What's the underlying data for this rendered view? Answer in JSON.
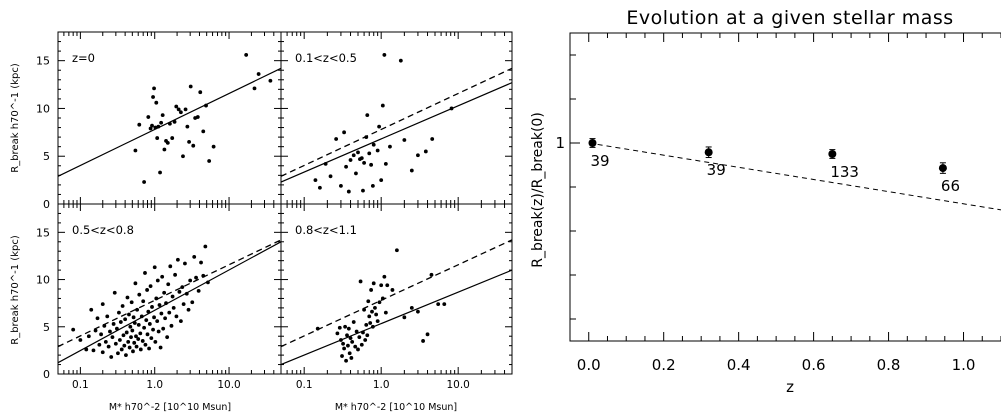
{
  "chart_data": [
    {
      "type": "scatter",
      "layout": "2x2 panel grid",
      "x_scale": "log",
      "xlabel": "M* h70^-2 [10^10 Msun]",
      "ylabel": "R_break h70^-1 (kpc)",
      "xlim": [
        0.05,
        50
      ],
      "ylim": [
        0,
        18
      ],
      "xtick_labels": [
        "0.1",
        "1.0",
        "10.0"
      ],
      "ytick_labels": [
        "0",
        "5",
        "10",
        "15"
      ],
      "reference_line": {
        "style": "dashed",
        "description": "z=0 fit",
        "x": [
          0.05,
          50
        ],
        "y": [
          2.9,
          14.2
        ]
      },
      "panels": [
        {
          "label": "z=0",
          "fit_line": {
            "style": "solid",
            "x": [
              0.05,
              50
            ],
            "y": [
              2.9,
              14.2
            ]
          },
          "points": [
            [
              0.62,
              8.3
            ],
            [
              0.55,
              5.6
            ],
            [
              0.72,
              2.3
            ],
            [
              0.82,
              9.1
            ],
            [
              0.88,
              7.9
            ],
            [
              0.92,
              8.2
            ],
            [
              0.95,
              11.2
            ],
            [
              0.98,
              12.1
            ],
            [
              1.02,
              8.0
            ],
            [
              1.05,
              10.6
            ],
            [
              1.08,
              6.9
            ],
            [
              1.12,
              8.1
            ],
            [
              1.18,
              3.3
            ],
            [
              1.22,
              8.5
            ],
            [
              1.28,
              9.3
            ],
            [
              1.35,
              5.7
            ],
            [
              1.42,
              6.6
            ],
            [
              1.5,
              6.4
            ],
            [
              1.6,
              8.4
            ],
            [
              1.72,
              6.9
            ],
            [
              1.85,
              8.6
            ],
            [
              1.95,
              10.2
            ],
            [
              2.1,
              9.9
            ],
            [
              2.25,
              9.6
            ],
            [
              2.4,
              5.0
            ],
            [
              2.6,
              9.9
            ],
            [
              2.75,
              8.1
            ],
            [
              2.9,
              6.5
            ],
            [
              3.05,
              12.3
            ],
            [
              3.3,
              6.1
            ],
            [
              3.5,
              9.0
            ],
            [
              3.8,
              9.1
            ],
            [
              4.1,
              11.7
            ],
            [
              4.5,
              7.6
            ],
            [
              4.9,
              10.3
            ],
            [
              5.4,
              4.5
            ],
            [
              6.2,
              6.0
            ],
            [
              17,
              15.6
            ],
            [
              22,
              12.1
            ],
            [
              25,
              13.6
            ],
            [
              36,
              12.9
            ]
          ]
        },
        {
          "label": "0.1<z<0.5",
          "fit_line": {
            "style": "solid",
            "x": [
              0.05,
              50
            ],
            "y": [
              2.3,
              12.7
            ]
          },
          "points": [
            [
              0.14,
              2.5
            ],
            [
              0.16,
              1.7
            ],
            [
              0.19,
              4.2
            ],
            [
              0.22,
              2.9
            ],
            [
              0.26,
              6.8
            ],
            [
              0.3,
              1.9
            ],
            [
              0.33,
              7.5
            ],
            [
              0.35,
              3.9
            ],
            [
              0.38,
              1.3
            ],
            [
              0.4,
              4.6
            ],
            [
              0.44,
              5.1
            ],
            [
              0.47,
              3.2
            ],
            [
              0.5,
              5.4
            ],
            [
              0.53,
              4.7
            ],
            [
              0.56,
              4.8
            ],
            [
              0.58,
              1.4
            ],
            [
              0.6,
              4.3
            ],
            [
              0.64,
              7.0
            ],
            [
              0.66,
              9.3
            ],
            [
              0.7,
              5.3
            ],
            [
              0.74,
              4.1
            ],
            [
              0.78,
              1.9
            ],
            [
              0.8,
              6.2
            ],
            [
              0.9,
              5.6
            ],
            [
              0.94,
              8.1
            ],
            [
              1.0,
              2.5
            ],
            [
              1.05,
              10.3
            ],
            [
              1.1,
              15.6
            ],
            [
              1.15,
              4.2
            ],
            [
              1.3,
              6.0
            ],
            [
              1.8,
              15.0
            ],
            [
              2.0,
              6.7
            ],
            [
              2.5,
              3.5
            ],
            [
              3.0,
              5.1
            ],
            [
              3.8,
              5.5
            ],
            [
              4.6,
              6.8
            ],
            [
              8.2,
              10.0
            ]
          ]
        },
        {
          "label": "0.5<z<0.8",
          "fit_line": {
            "style": "solid",
            "x": [
              0.05,
              50
            ],
            "y": [
              1.2,
              14.0
            ]
          },
          "points": [
            [
              0.08,
              4.7
            ],
            [
              0.1,
              3.6
            ],
            [
              0.12,
              2.6
            ],
            [
              0.13,
              4.0
            ],
            [
              0.14,
              6.8
            ],
            [
              0.15,
              2.5
            ],
            [
              0.16,
              4.6
            ],
            [
              0.17,
              5.9
            ],
            [
              0.18,
              3.1
            ],
            [
              0.19,
              4.2
            ],
            [
              0.2,
              7.4
            ],
            [
              0.2,
              2.3
            ],
            [
              0.21,
              5.1
            ],
            [
              0.22,
              3.4
            ],
            [
              0.23,
              6.1
            ],
            [
              0.24,
              2.9
            ],
            [
              0.25,
              4.5
            ],
            [
              0.26,
              1.8
            ],
            [
              0.27,
              3.9
            ],
            [
              0.28,
              5.3
            ],
            [
              0.29,
              8.6
            ],
            [
              0.3,
              3.2
            ],
            [
              0.31,
              4.8
            ],
            [
              0.32,
              2.2
            ],
            [
              0.33,
              6.5
            ],
            [
              0.34,
              3.6
            ],
            [
              0.35,
              5.5
            ],
            [
              0.36,
              2.6
            ],
            [
              0.37,
              7.2
            ],
            [
              0.38,
              4.1
            ],
            [
              0.39,
              3.0
            ],
            [
              0.4,
              5.8
            ],
            [
              0.41,
              2.0
            ],
            [
              0.42,
              4.4
            ],
            [
              0.43,
              8.1
            ],
            [
              0.44,
              3.4
            ],
            [
              0.45,
              6.3
            ],
            [
              0.46,
              2.8
            ],
            [
              0.47,
              5.0
            ],
            [
              0.48,
              3.9
            ],
            [
              0.49,
              7.6
            ],
            [
              0.5,
              4.6
            ],
            [
              0.51,
              2.4
            ],
            [
              0.52,
              6.0
            ],
            [
              0.53,
              3.3
            ],
            [
              0.54,
              5.4
            ],
            [
              0.55,
              9.6
            ],
            [
              0.56,
              4.0
            ],
            [
              0.57,
              2.9
            ],
            [
              0.58,
              6.8
            ],
            [
              0.6,
              3.7
            ],
            [
              0.61,
              5.2
            ],
            [
              0.62,
              8.4
            ],
            [
              0.64,
              4.3
            ],
            [
              0.65,
              2.6
            ],
            [
              0.67,
              6.1
            ],
            [
              0.69,
              3.5
            ],
            [
              0.7,
              7.7
            ],
            [
              0.72,
              4.9
            ],
            [
              0.74,
              10.7
            ],
            [
              0.75,
              3.1
            ],
            [
              0.77,
              5.7
            ],
            [
              0.79,
              8.9
            ],
            [
              0.8,
              4.2
            ],
            [
              0.82,
              6.6
            ],
            [
              0.84,
              2.7
            ],
            [
              0.86,
              5.3
            ],
            [
              0.88,
              9.3
            ],
            [
              0.9,
              3.8
            ],
            [
              0.92,
              7.1
            ],
            [
              0.95,
              4.7
            ],
            [
              0.98,
              6.0
            ],
            [
              1.0,
              11.3
            ],
            [
              1.02,
              3.4
            ],
            [
              1.05,
              8.0
            ],
            [
              1.08,
              5.6
            ],
            [
              1.1,
              9.9
            ],
            [
              1.13,
              4.5
            ],
            [
              1.16,
              7.3
            ],
            [
              1.2,
              2.8
            ],
            [
              1.23,
              6.4
            ],
            [
              1.26,
              10.3
            ],
            [
              1.3,
              4.8
            ],
            [
              1.34,
              8.6
            ],
            [
              1.38,
              5.9
            ],
            [
              1.42,
              7.5
            ],
            [
              1.47,
              3.9
            ],
            [
              1.52,
              9.5
            ],
            [
              1.57,
              6.5
            ],
            [
              1.62,
              11.4
            ],
            [
              1.68,
              5.1
            ],
            [
              1.74,
              8.2
            ],
            [
              1.8,
              7.0
            ],
            [
              1.88,
              10.5
            ],
            [
              1.96,
              6.1
            ],
            [
              2.05,
              12.1
            ],
            [
              2.15,
              8.7
            ],
            [
              2.25,
              5.6
            ],
            [
              2.35,
              9.2
            ],
            [
              2.45,
              7.4
            ],
            [
              2.55,
              11.7
            ],
            [
              2.7,
              8.5
            ],
            [
              2.85,
              6.8
            ],
            [
              3.0,
              9.9
            ],
            [
              3.2,
              7.6
            ],
            [
              3.4,
              12.4
            ],
            [
              3.6,
              10.2
            ],
            [
              3.9,
              8.8
            ],
            [
              4.2,
              11.8
            ],
            [
              4.5,
              10.4
            ],
            [
              4.8,
              13.5
            ],
            [
              5.2,
              9.7
            ]
          ]
        },
        {
          "label": "0.8<z<1.1",
          "fit_line": {
            "style": "solid",
            "x": [
              0.05,
              50
            ],
            "y": [
              1.0,
              11.0
            ]
          },
          "points": [
            [
              0.15,
              4.8
            ],
            [
              0.27,
              4.3
            ],
            [
              0.29,
              4.9
            ],
            [
              0.3,
              3.6
            ],
            [
              0.31,
              1.9
            ],
            [
              0.32,
              3.2
            ],
            [
              0.33,
              2.7
            ],
            [
              0.34,
              5.0
            ],
            [
              0.35,
              1.4
            ],
            [
              0.36,
              4.1
            ],
            [
              0.37,
              3.0
            ],
            [
              0.38,
              4.8
            ],
            [
              0.39,
              2.2
            ],
            [
              0.4,
              3.8
            ],
            [
              0.41,
              1.7
            ],
            [
              0.42,
              3.4
            ],
            [
              0.44,
              5.5
            ],
            [
              0.46,
              2.9
            ],
            [
              0.48,
              4.5
            ],
            [
              0.5,
              2.6
            ],
            [
              0.52,
              3.9
            ],
            [
              0.54,
              9.8
            ],
            [
              0.56,
              3.1
            ],
            [
              0.58,
              4.4
            ],
            [
              0.6,
              6.8
            ],
            [
              0.62,
              3.6
            ],
            [
              0.64,
              5.2
            ],
            [
              0.66,
              4.1
            ],
            [
              0.68,
              7.7
            ],
            [
              0.7,
              6.1
            ],
            [
              0.72,
              5.4
            ],
            [
              0.74,
              8.9
            ],
            [
              0.76,
              6.6
            ],
            [
              0.78,
              5.0
            ],
            [
              0.8,
              9.6
            ],
            [
              0.83,
              7.0
            ],
            [
              0.86,
              6.3
            ],
            [
              0.9,
              5.6
            ],
            [
              0.95,
              7.6
            ],
            [
              1.0,
              9.4
            ],
            [
              1.05,
              8.0
            ],
            [
              1.1,
              10.3
            ],
            [
              1.15,
              6.5
            ],
            [
              1.2,
              9.4
            ],
            [
              1.4,
              8.9
            ],
            [
              1.6,
              13.1
            ],
            [
              2.0,
              6.0
            ],
            [
              2.5,
              7.0
            ],
            [
              3.0,
              6.6
            ],
            [
              3.5,
              3.5
            ],
            [
              4.0,
              4.2
            ],
            [
              4.5,
              10.5
            ],
            [
              5.5,
              7.4
            ],
            [
              6.6,
              7.4
            ]
          ]
        }
      ]
    },
    {
      "type": "scatter",
      "title": "Evolution at a given stellar mass",
      "xlabel": "z",
      "ylabel": "R_break(z)/R_break(0)",
      "xlim": [
        -0.05,
        1.1
      ],
      "ylim": [
        0.55,
        1.25
      ],
      "xtick_labels": [
        "0.0",
        "0.2",
        "0.4",
        "0.6",
        "0.8",
        "1.0"
      ],
      "ytick_labels": [
        "1"
      ],
      "trend_line": {
        "style": "dashed",
        "x": [
          0.0,
          1.1
        ],
        "y": [
          1.0,
          0.848
        ]
      },
      "points": [
        {
          "x": 0.01,
          "y": 1.0,
          "yerr": 0.01,
          "label": "39"
        },
        {
          "x": 0.32,
          "y": 0.979,
          "yerr": 0.012,
          "label": "39"
        },
        {
          "x": 0.65,
          "y": 0.975,
          "yerr": 0.01,
          "label": "133"
        },
        {
          "x": 0.945,
          "y": 0.943,
          "yerr": 0.012,
          "label": "66"
        }
      ]
    }
  ]
}
